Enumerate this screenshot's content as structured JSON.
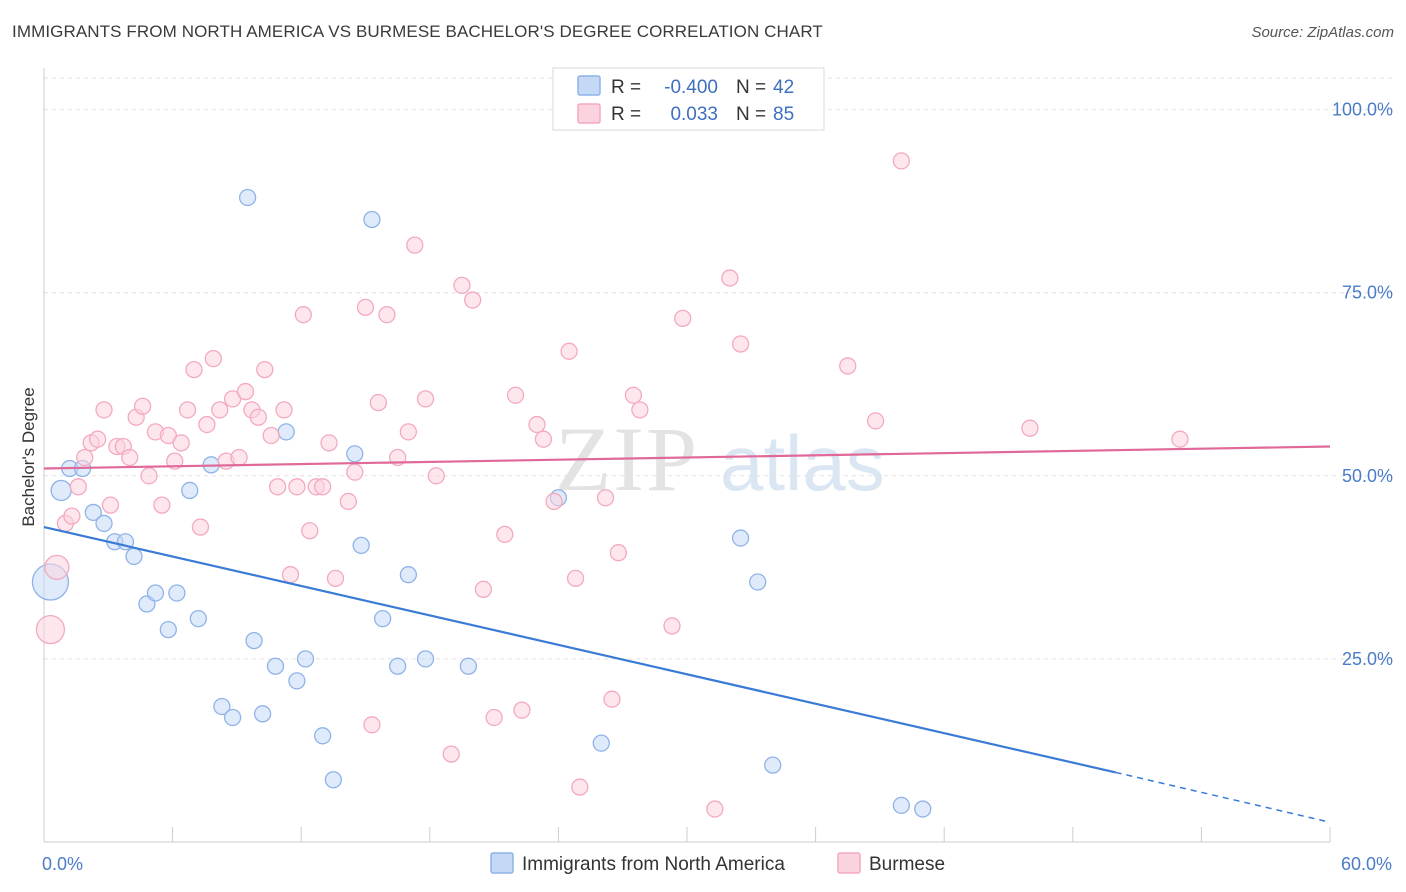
{
  "title": "IMMIGRANTS FROM NORTH AMERICA VS BURMESE BACHELOR'S DEGREE CORRELATION CHART",
  "source": "Source: ZipAtlas.com",
  "watermark": {
    "zip": "ZIP",
    "atlas": "atlas"
  },
  "chart_data": {
    "type": "scatter",
    "xlabel": "",
    "ylabel": "Bachelor's Degree",
    "xlim": [
      0,
      60
    ],
    "ylim": [
      0,
      105
    ],
    "x_tick_labels": [
      "0.0%",
      "60.0%"
    ],
    "y_ticks": [
      25,
      50,
      75,
      100
    ],
    "y_tick_labels": [
      "25.0%",
      "50.0%",
      "75.0%",
      "100.0%"
    ],
    "grid": true,
    "legend": {
      "position": "top-center",
      "rows": [
        {
          "r_label": "R =",
          "r_value": "-0.400",
          "n_label": "N =",
          "n_value": "42"
        },
        {
          "r_label": "R =",
          "r_value": "0.033",
          "n_label": "N =",
          "n_value": "85"
        }
      ]
    },
    "series": [
      {
        "name": "Immigrants from North America",
        "color": "#8fb3e8",
        "line_color": "#3a7bd5",
        "trend": {
          "x0": 0,
          "y0": 43,
          "x1": 50,
          "y1": 9.5,
          "dash_to_x": 60,
          "dash_to_y": 2.7
        },
        "points": [
          [
            0.3,
            35.5,
            18
          ],
          [
            0.8,
            48,
            10
          ],
          [
            1.2,
            51,
            8
          ],
          [
            1.8,
            51,
            8
          ],
          [
            2.3,
            45,
            8
          ],
          [
            2.8,
            43.5,
            8
          ],
          [
            3.3,
            41,
            8
          ],
          [
            3.8,
            41,
            8
          ],
          [
            4.2,
            39,
            8
          ],
          [
            4.8,
            32.5,
            8
          ],
          [
            5.2,
            34,
            8
          ],
          [
            5.8,
            29,
            8
          ],
          [
            6.2,
            34,
            8
          ],
          [
            6.8,
            48,
            8
          ],
          [
            7.2,
            30.5,
            8
          ],
          [
            7.8,
            51.5,
            8
          ],
          [
            8.3,
            18.5,
            8
          ],
          [
            8.8,
            17,
            8
          ],
          [
            9.5,
            88,
            8
          ],
          [
            9.8,
            27.5,
            8
          ],
          [
            10.2,
            17.5,
            8
          ],
          [
            10.8,
            24,
            8
          ],
          [
            11.3,
            56,
            8
          ],
          [
            11.8,
            22,
            8
          ],
          [
            12.2,
            25,
            8
          ],
          [
            13.0,
            14.5,
            8
          ],
          [
            13.5,
            8.5,
            8
          ],
          [
            14.5,
            53,
            8
          ],
          [
            14.8,
            40.5,
            8
          ],
          [
            15.3,
            85,
            8
          ],
          [
            15.8,
            30.5,
            8
          ],
          [
            16.5,
            24,
            8
          ],
          [
            17.0,
            36.5,
            8
          ],
          [
            17.8,
            25,
            8
          ],
          [
            19.8,
            24,
            8
          ],
          [
            24.0,
            47,
            8
          ],
          [
            26.0,
            13.5,
            8
          ],
          [
            32.5,
            41.5,
            8
          ],
          [
            33.3,
            35.5,
            8
          ],
          [
            34.0,
            10.5,
            8
          ],
          [
            40.0,
            5,
            8
          ],
          [
            41.0,
            4.5,
            8
          ]
        ]
      },
      {
        "name": "Burmese",
        "color": "#f3a9bf",
        "line_color": "#e0699a",
        "trend": {
          "x0": 0,
          "y0": 51,
          "x1": 60,
          "y1": 54
        },
        "points": [
          [
            0.3,
            29,
            14
          ],
          [
            0.6,
            37.5,
            12
          ],
          [
            1.0,
            43.5,
            8
          ],
          [
            1.3,
            44.5,
            8
          ],
          [
            1.6,
            48.5,
            8
          ],
          [
            1.9,
            52.5,
            8
          ],
          [
            2.2,
            54.5,
            8
          ],
          [
            2.5,
            55,
            8
          ],
          [
            2.8,
            59,
            8
          ],
          [
            3.1,
            46,
            8
          ],
          [
            3.4,
            54,
            8
          ],
          [
            3.7,
            54,
            8
          ],
          [
            4.0,
            52.5,
            8
          ],
          [
            4.3,
            58,
            8
          ],
          [
            4.6,
            59.5,
            8
          ],
          [
            4.9,
            50,
            8
          ],
          [
            5.2,
            56,
            8
          ],
          [
            5.5,
            46,
            8
          ],
          [
            5.8,
            55.5,
            8
          ],
          [
            6.1,
            52,
            8
          ],
          [
            6.4,
            54.5,
            8
          ],
          [
            6.7,
            59,
            8
          ],
          [
            7.0,
            64.5,
            8
          ],
          [
            7.3,
            43,
            8
          ],
          [
            7.6,
            57,
            8
          ],
          [
            7.9,
            66,
            8
          ],
          [
            8.2,
            59,
            8
          ],
          [
            8.5,
            52,
            8
          ],
          [
            8.8,
            60.5,
            8
          ],
          [
            9.1,
            52.5,
            8
          ],
          [
            9.4,
            61.5,
            8
          ],
          [
            9.7,
            59,
            8
          ],
          [
            10.0,
            58,
            8
          ],
          [
            10.3,
            64.5,
            8
          ],
          [
            10.6,
            55.5,
            8
          ],
          [
            10.9,
            48.5,
            8
          ],
          [
            11.2,
            59,
            8
          ],
          [
            11.5,
            36.5,
            8
          ],
          [
            11.8,
            48.5,
            8
          ],
          [
            12.1,
            72,
            8
          ],
          [
            12.4,
            42.5,
            8
          ],
          [
            12.7,
            48.5,
            8
          ],
          [
            13.0,
            48.5,
            8
          ],
          [
            13.3,
            54.5,
            8
          ],
          [
            13.6,
            36,
            8
          ],
          [
            14.2,
            46.5,
            8
          ],
          [
            14.5,
            50.5,
            8
          ],
          [
            15.0,
            73,
            8
          ],
          [
            15.3,
            16,
            8
          ],
          [
            15.6,
            60,
            8
          ],
          [
            16.0,
            72,
            8
          ],
          [
            16.5,
            52.5,
            8
          ],
          [
            17.0,
            56,
            8
          ],
          [
            17.3,
            81.5,
            8
          ],
          [
            17.8,
            60.5,
            8
          ],
          [
            18.3,
            50,
            8
          ],
          [
            19.0,
            12,
            8
          ],
          [
            19.5,
            76,
            8
          ],
          [
            20.0,
            74,
            8
          ],
          [
            20.5,
            34.5,
            8
          ],
          [
            21.0,
            17,
            8
          ],
          [
            21.5,
            42,
            8
          ],
          [
            22.0,
            61,
            8
          ],
          [
            22.3,
            18,
            8
          ],
          [
            23.0,
            57,
            8
          ],
          [
            23.3,
            55,
            8
          ],
          [
            23.8,
            46.5,
            8
          ],
          [
            24.5,
            67,
            8
          ],
          [
            24.8,
            36,
            8
          ],
          [
            25.0,
            7.5,
            8
          ],
          [
            26.2,
            47,
            8
          ],
          [
            26.5,
            19.5,
            8
          ],
          [
            26.8,
            39.5,
            8
          ],
          [
            27.5,
            61,
            8
          ],
          [
            27.8,
            59,
            8
          ],
          [
            29.3,
            29.5,
            8
          ],
          [
            29.8,
            71.5,
            8
          ],
          [
            31.3,
            4.5,
            8
          ],
          [
            32.0,
            77,
            8
          ],
          [
            32.5,
            68,
            8
          ],
          [
            37.5,
            65,
            8
          ],
          [
            38.8,
            57.5,
            8
          ],
          [
            40.0,
            93,
            8
          ],
          [
            46.0,
            56.5,
            8
          ],
          [
            53.0,
            55,
            8
          ]
        ]
      }
    ]
  }
}
